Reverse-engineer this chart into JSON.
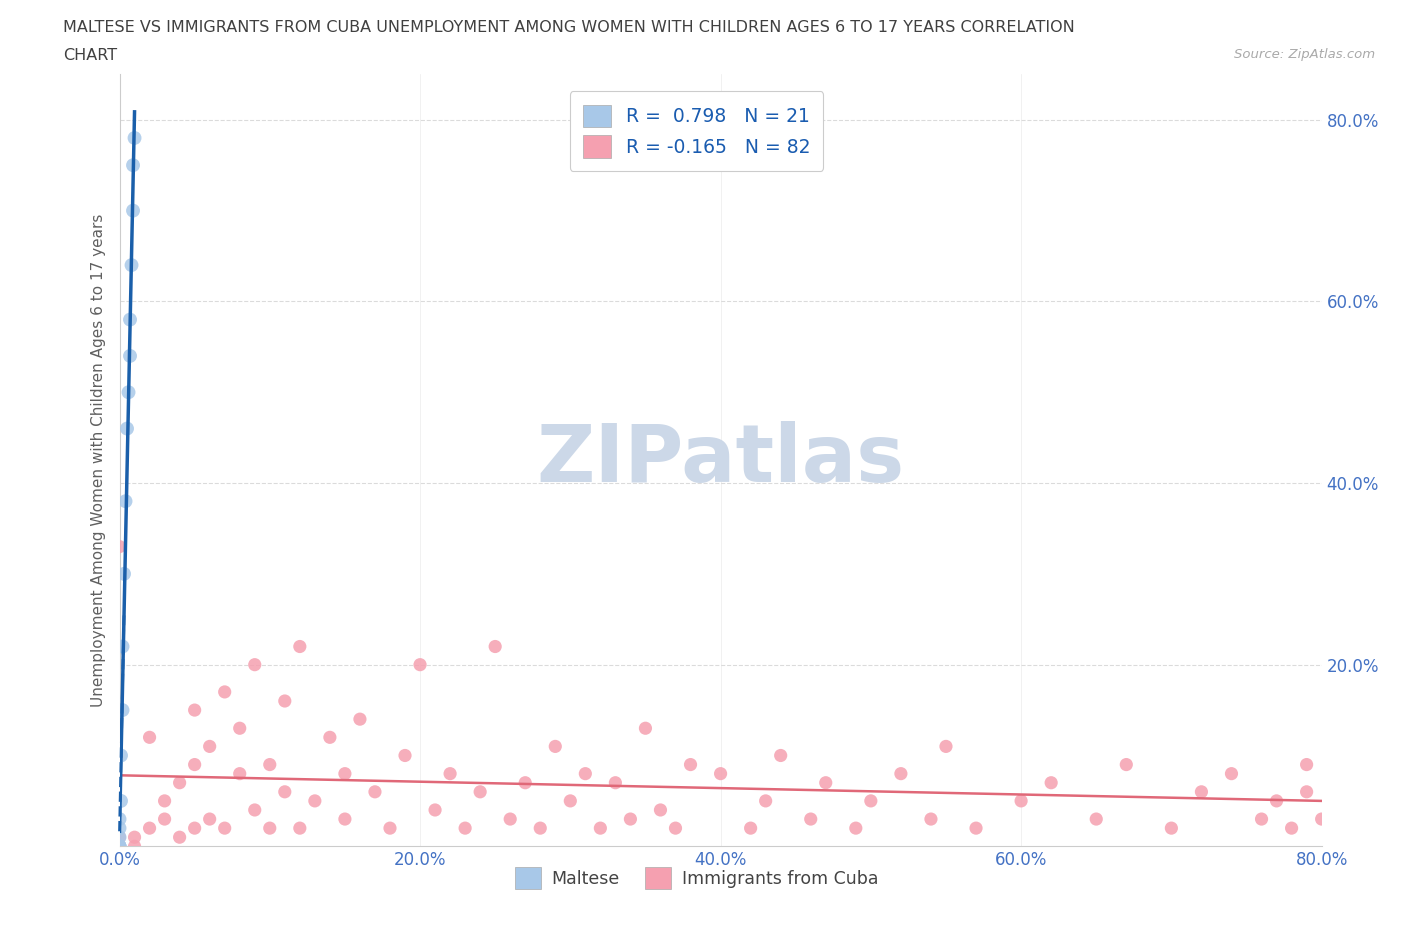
{
  "title_line1": "MALTESE VS IMMIGRANTS FROM CUBA UNEMPLOYMENT AMONG WOMEN WITH CHILDREN AGES 6 TO 17 YEARS CORRELATION",
  "title_line2": "CHART",
  "source_text": "Source: ZipAtlas.com",
  "ylabel": "Unemployment Among Women with Children Ages 6 to 17 years",
  "legend_maltese_label": "Maltese",
  "legend_cuba_label": "Immigrants from Cuba",
  "maltese_R": 0.798,
  "maltese_N": 21,
  "cuba_R": -0.165,
  "cuba_N": 82,
  "xlim": [
    0.0,
    0.8
  ],
  "ylim": [
    0.0,
    0.85
  ],
  "xtick_vals": [
    0.0,
    0.2,
    0.4,
    0.6,
    0.8
  ],
  "xtick_labels": [
    "0.0%",
    "20.0%",
    "40.0%",
    "60.0%",
    "80.0%"
  ],
  "ytick_vals": [
    0.2,
    0.4,
    0.6,
    0.8
  ],
  "ytick_labels": [
    "20.0%",
    "40.0%",
    "60.0%",
    "80.0%"
  ],
  "maltese_color": "#a8c8e8",
  "cuba_color": "#f5a0b0",
  "maltese_line_color": "#1a5faa",
  "cuba_line_color": "#e06878",
  "background_color": "#ffffff",
  "grid_color": "#d8d8d8",
  "watermark_color": "#ccd8e8",
  "title_color": "#404040",
  "axis_label_color": "#606060",
  "tick_label_color": "#4472c4",
  "legend_R_color": "#1a5cb0",
  "maltese_x": [
    0.0,
    0.0,
    0.0,
    0.0,
    0.0,
    0.0,
    0.0,
    0.001,
    0.001,
    0.002,
    0.002,
    0.003,
    0.004,
    0.005,
    0.006,
    0.007,
    0.007,
    0.008,
    0.009,
    0.009,
    0.01
  ],
  "maltese_y": [
    0.0,
    0.0,
    0.0,
    0.0,
    0.01,
    0.02,
    0.03,
    0.05,
    0.1,
    0.15,
    0.22,
    0.3,
    0.38,
    0.46,
    0.5,
    0.54,
    0.58,
    0.64,
    0.7,
    0.75,
    0.78
  ],
  "cuba_x": [
    0.0,
    0.0,
    0.0,
    0.0,
    0.0,
    0.01,
    0.01,
    0.02,
    0.02,
    0.03,
    0.03,
    0.04,
    0.04,
    0.05,
    0.05,
    0.05,
    0.06,
    0.06,
    0.07,
    0.07,
    0.08,
    0.08,
    0.09,
    0.09,
    0.1,
    0.1,
    0.11,
    0.11,
    0.12,
    0.12,
    0.13,
    0.14,
    0.15,
    0.15,
    0.16,
    0.17,
    0.18,
    0.19,
    0.2,
    0.21,
    0.22,
    0.23,
    0.24,
    0.25,
    0.26,
    0.27,
    0.28,
    0.29,
    0.3,
    0.31,
    0.32,
    0.33,
    0.34,
    0.35,
    0.36,
    0.37,
    0.38,
    0.4,
    0.42,
    0.43,
    0.44,
    0.46,
    0.47,
    0.49,
    0.5,
    0.52,
    0.54,
    0.55,
    0.57,
    0.6,
    0.62,
    0.65,
    0.67,
    0.7,
    0.72,
    0.74,
    0.76,
    0.77,
    0.78,
    0.79,
    0.79,
    0.8
  ],
  "cuba_y": [
    0.0,
    0.0,
    0.0,
    0.01,
    0.33,
    0.0,
    0.01,
    0.02,
    0.12,
    0.03,
    0.05,
    0.01,
    0.07,
    0.02,
    0.09,
    0.15,
    0.03,
    0.11,
    0.02,
    0.17,
    0.08,
    0.13,
    0.04,
    0.2,
    0.02,
    0.09,
    0.06,
    0.16,
    0.02,
    0.22,
    0.05,
    0.12,
    0.03,
    0.08,
    0.14,
    0.06,
    0.02,
    0.1,
    0.2,
    0.04,
    0.08,
    0.02,
    0.06,
    0.22,
    0.03,
    0.07,
    0.02,
    0.11,
    0.05,
    0.08,
    0.02,
    0.07,
    0.03,
    0.13,
    0.04,
    0.02,
    0.09,
    0.08,
    0.02,
    0.05,
    0.1,
    0.03,
    0.07,
    0.02,
    0.05,
    0.08,
    0.03,
    0.11,
    0.02,
    0.05,
    0.07,
    0.03,
    0.09,
    0.02,
    0.06,
    0.08,
    0.03,
    0.05,
    0.02,
    0.06,
    0.09,
    0.03
  ]
}
